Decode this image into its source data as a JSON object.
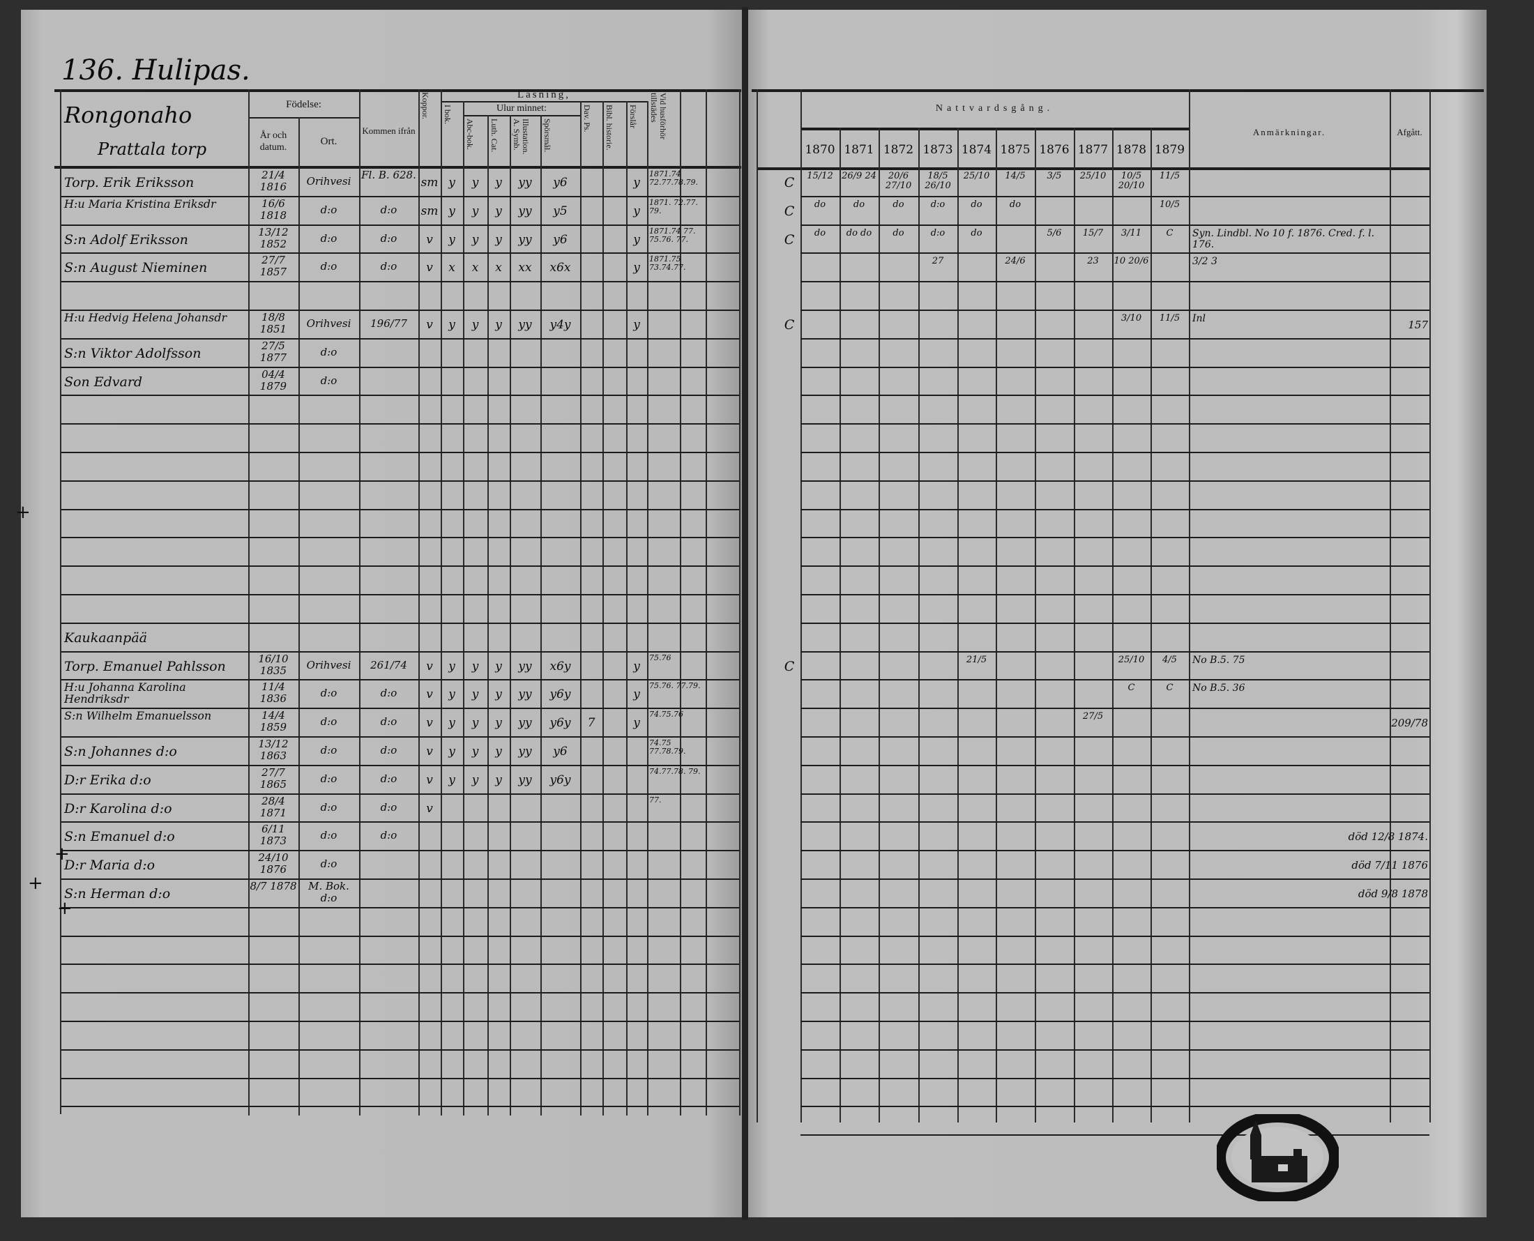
{
  "left_page": {
    "title": "136. Hulipas.",
    "village": "Rongonaho",
    "farm": "Prattala torp",
    "headers": {
      "fodelse": "Födelse:",
      "ar_datum": "År och datum.",
      "ort": "Ort.",
      "kommen": "Kommen ifrån",
      "koppor": "Koppor.",
      "lasning": "Läsning,",
      "ur_minnet": "Ulur minnet:",
      "i_bok": "I bok.",
      "abc": "Abc-bok.",
      "luth": "Luth. Cat.",
      "illust": "Illustation. A. Symb.",
      "sporsmal": "Spörsmål.",
      "dav": "Dav. Ps.",
      "bibl": "Bibl. historie.",
      "forsl": "Förslår",
      "vid": "Vid husförhör tillstädes"
    },
    "margin_marks": [
      "+",
      "+",
      "+",
      "+"
    ],
    "rows": [
      {
        "name": "Torp. Erik Eriksson",
        "born": "21/4 1816",
        "ort": "Orihvesi",
        "kommen": "Fl. B. 628.",
        "koppor": "sm",
        "i_bok": "y",
        "abc": "y",
        "luth": "y",
        "illust": "yy",
        "sporsmal": "y6",
        "forsl": "y",
        "vid": "1871.74 72.77.78.79."
      },
      {
        "name": "H:u Maria Kristina Eriksdr",
        "born": "16/6 1818",
        "ort": "d:o",
        "kommen": "d:o",
        "koppor": "sm",
        "i_bok": "y",
        "abc": "y",
        "luth": "y",
        "illust": "yy",
        "sporsmal": "y5",
        "forsl": "y",
        "vid": "1871. 72.77. 79."
      },
      {
        "name": "S:n Adolf Eriksson",
        "born": "13/12 1852",
        "ort": "d:o",
        "kommen": "d:o",
        "koppor": "v",
        "i_bok": "y",
        "abc": "y",
        "luth": "y",
        "illust": "yy",
        "sporsmal": "y6",
        "forsl": "y",
        "vid": "1871.74 77. 75.76. 77."
      },
      {
        "name": "S:n August Nieminen",
        "born": "27/7 1857",
        "ort": "d:o",
        "kommen": "d:o",
        "koppor": "v",
        "i_bok": "x",
        "abc": "x",
        "luth": "x",
        "illust": "xx",
        "sporsmal": "x6x",
        "forsl": "y",
        "vid": "1871.75 73.74.77."
      },
      {},
      {
        "name": "H:u Hedvig Helena Johansdr",
        "born": "18/8 1851",
        "ort": "Orihvesi",
        "kommen": "196/77",
        "koppor": "v",
        "i_bok": "y",
        "abc": "y",
        "luth": "y",
        "illust": "yy",
        "sporsmal": "y4y",
        "forsl": "y"
      },
      {
        "name": "S:n Viktor Adolfsson",
        "born": "27/5 1877",
        "ort": "d:o"
      },
      {
        "name": "Son Edvard",
        "born": "04/4 1879",
        "ort": "d:o"
      },
      {},
      {},
      {},
      {},
      {},
      {},
      {},
      {},
      {
        "name": "Kaukaanpää"
      },
      {
        "name": "Torp. Emanuel Pahlsson",
        "born": "16/10 1835",
        "ort": "Orihvesi",
        "kommen": "261/74",
        "koppor": "v",
        "i_bok": "y",
        "abc": "y",
        "luth": "y",
        "illust": "yy",
        "sporsmal": "x6y",
        "forsl": "y",
        "vid": "75.76"
      },
      {
        "name": "H:u Johanna Karolina Hendriksdr",
        "born": "11/4 1836",
        "ort": "d:o",
        "kommen": "d:o",
        "koppor": "v",
        "i_bok": "y",
        "abc": "y",
        "luth": "y",
        "illust": "yy",
        "sporsmal": "y6y",
        "forsl": "y",
        "vid": "75.76. 77.79."
      },
      {
        "name": "S:n Wilhelm Emanuelsson",
        "born": "14/4 1859",
        "ort": "d:o",
        "kommen": "d:o",
        "koppor": "v",
        "i_bok": "y",
        "abc": "y",
        "luth": "y",
        "illust": "yy",
        "sporsmal": "y6y",
        "dav": "7",
        "forsl": "y",
        "vid": "74.75.76"
      },
      {
        "name": "S:n Johannes d:o",
        "born": "13/12 1863",
        "ort": "d:o",
        "kommen": "d:o",
        "koppor": "v",
        "i_bok": "y",
        "abc": "y",
        "luth": "y",
        "illust": "yy",
        "sporsmal": "y6",
        "vid": "74.75 77.78.79."
      },
      {
        "name": "D:r Erika d:o",
        "born": "27/7 1865",
        "ort": "d:o",
        "kommen": "d:o",
        "koppor": "v",
        "i_bok": "y",
        "abc": "y",
        "luth": "y",
        "illust": "yy",
        "sporsmal": "y6y",
        "vid": "74.77.78. 79."
      },
      {
        "name": "D:r Karolina d:o",
        "born": "28/4 1871",
        "ort": "d:o",
        "kommen": "d:o",
        "koppor": "v",
        "vid": "77."
      },
      {
        "name": "S:n Emanuel d:o",
        "born": "6/11 1873",
        "ort": "d:o",
        "kommen": "d:o"
      },
      {
        "name": "D:r Maria d:o",
        "born": "24/10 1876",
        "ort": "d:o"
      },
      {
        "name": "S:n Herman d:o",
        "born": "8/7 1878",
        "ort": "M. Bok. d:o"
      }
    ]
  },
  "right_page": {
    "headers": {
      "nattvard": "Nattvardsgång.",
      "years": [
        "1870",
        "1871",
        "1872",
        "1873",
        "1874",
        "1875",
        "1876",
        "1877",
        "1878",
        "1879"
      ],
      "anm": "Anmärkningar.",
      "afgatt": "Afgått."
    },
    "rows": [
      {
        "pre": "C",
        "nv": [
          "15/12",
          "26/9 24",
          "20/6 27/10",
          "18/5 26/10",
          "25/10",
          "14/5",
          "3/5",
          "",
          "25/10",
          "10/5 20/10"
        ],
        "nv_last": "11/5"
      },
      {
        "pre": "C",
        "nv": [
          "do",
          "do",
          "do",
          "d:o",
          "do",
          "do",
          "",
          "",
          "",
          "10/5"
        ]
      },
      {
        "pre": "C",
        "nv": [
          "do",
          "do do",
          "do",
          "d:o",
          "do",
          "",
          "5/6",
          "15/7",
          "3/11",
          "C"
        ],
        "anm": "Syn. Lindbl. No 10 f. 1876. Cred. f. l. 176."
      },
      {
        "pre": "",
        "nv": [
          "",
          "",
          "",
          "27",
          "",
          "24/6",
          "",
          "23",
          "10 20/6",
          ""
        ],
        "anm": "3/2 3"
      },
      {},
      {
        "pre": "C",
        "nv": [
          "",
          "",
          "",
          "",
          "",
          "",
          "",
          "",
          "3/10",
          "11/5"
        ],
        "anm": "Inl",
        "afgatt": "157"
      },
      {},
      {},
      {},
      {},
      {},
      {},
      {},
      {},
      {},
      {},
      {},
      {
        "pre": "C",
        "nv": [
          "",
          "",
          "",
          "",
          "21/5",
          "",
          "",
          "",
          "25/10",
          ""
        ],
        "nv_last": "4/5",
        "anm": "No B.5. 75"
      },
      {
        "pre": "",
        "nv": [
          "",
          "",
          "",
          "",
          "",
          "",
          "",
          "",
          "C",
          ""
        ],
        "nv_last": "C",
        "anm": "No B.5. 36"
      },
      {
        "pre": "",
        "nv": [
          "",
          "",
          "",
          "",
          "",
          "",
          "",
          "27/5",
          "",
          ""
        ],
        "afgatt": "209/78"
      },
      {},
      {},
      {},
      {
        "afgatt": "död 12/8 1874."
      },
      {
        "afgatt": "död 7/11 1876"
      },
      {
        "afgatt": "död 9/8 1878"
      }
    ]
  },
  "stamp": {
    "label": "archive stamp with church"
  }
}
